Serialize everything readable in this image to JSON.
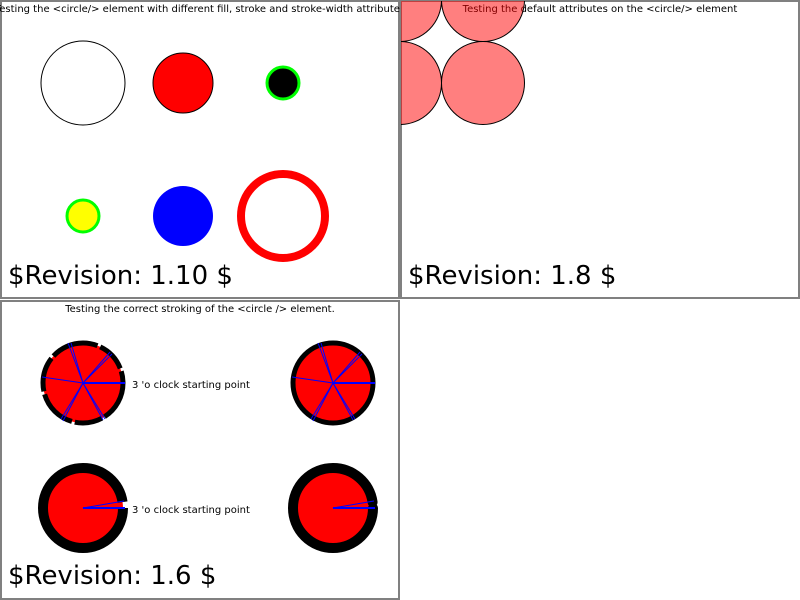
{
  "panels": {
    "circle_attributes": {
      "title": "Testing the <circle/> element with different fill, stroke and stroke-width attributes",
      "revision": "$Revision: 1.10 $"
    },
    "circle_defaults": {
      "title": "Testing the default attributes on the <circle/> element",
      "revision": "$Revision: 1.8 $"
    },
    "circle_stroking": {
      "title": "Testing the correct stroking of the <circle /> element.",
      "label_top": "3 'o clock starting point",
      "label_bottom": "3 'o clock starting point",
      "revision": "$Revision: 1.6 $"
    }
  },
  "colors": {
    "red": "#ff0000",
    "blue": "#0000ff",
    "green": "#00ff00",
    "yellow": "#ffff00",
    "black": "#000000",
    "border": "#808080"
  }
}
